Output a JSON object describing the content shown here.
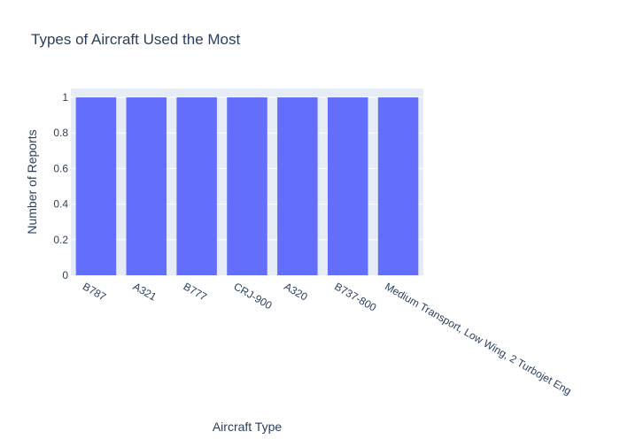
{
  "chart_data": {
    "type": "bar",
    "title": "Types of Aircraft Used the Most",
    "xlabel": "Aircraft Type",
    "ylabel": "Number of Reports",
    "categories": [
      "B787",
      "A321",
      "B777",
      "CRJ-900",
      "A320",
      "B737-800",
      "Medium Transport, Low Wing, 2 Turbojet Eng"
    ],
    "values": [
      1,
      1,
      1,
      1,
      1,
      1,
      1
    ],
    "ylim": [
      0,
      1.05
    ],
    "yticks": [
      "0",
      "0.2",
      "0.4",
      "0.6",
      "0.8",
      "1"
    ],
    "grid": true,
    "legend": "none",
    "colors": {
      "bar": "#636efa",
      "plot_bg": "#e5ecf6",
      "grid": "#ffffff",
      "text": "#2a3f5f"
    }
  }
}
